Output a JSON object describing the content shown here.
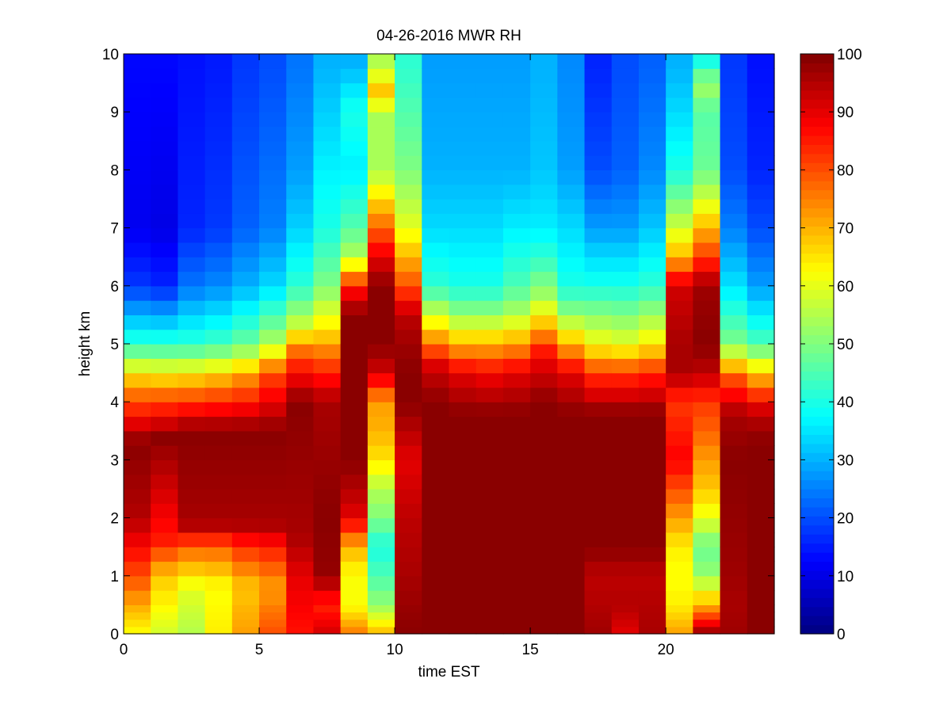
{
  "chart_data": {
    "type": "heatmap",
    "title": "04-26-2016 MWR RH",
    "xlabel": "time EST",
    "ylabel": "height km",
    "xlim": [
      0,
      24
    ],
    "ylim": [
      0,
      10
    ],
    "xticks": [
      0,
      5,
      10,
      15,
      20
    ],
    "yticks": [
      0,
      1,
      2,
      3,
      4,
      5,
      6,
      7,
      8,
      9,
      10
    ],
    "colormap": "jet",
    "clim": [
      0,
      100
    ],
    "colorbar_ticks": [
      0,
      10,
      20,
      30,
      40,
      50,
      60,
      70,
      80,
      90,
      100
    ],
    "x": [
      0.0,
      1.0,
      2.0,
      3.0,
      4.0,
      5.0,
      6.0,
      7.0,
      8.0,
      9.0,
      10.0,
      11.0,
      12.0,
      13.0,
      14.0,
      15.0,
      16.0,
      17.0,
      18.0,
      19.0,
      20.0,
      21.0,
      22.0,
      23.0
    ],
    "y_rows": [
      0.0,
      0.125,
      0.25,
      0.375,
      0.5,
      0.75,
      1.0,
      1.25,
      1.5,
      1.75,
      2.0,
      2.25,
      2.5,
      2.75,
      3.0,
      3.25,
      3.5,
      3.75,
      4.0,
      4.25,
      4.5,
      4.75,
      5.0,
      5.25,
      5.5,
      5.75,
      6.0,
      6.25,
      6.5,
      6.75,
      7.0,
      7.25,
      7.5,
      7.75,
      8.0,
      8.25,
      8.5,
      8.75,
      9.0,
      9.25,
      9.5,
      9.75
    ],
    "profiles": [
      {
        "time": 0.0,
        "h": [
          0,
          1,
          2,
          3.3,
          4.3,
          5.0,
          6.0,
          7.0,
          9.8
        ],
        "rh": [
          62,
          80,
          95,
          99,
          72,
          42,
          18,
          11,
          13
        ]
      },
      {
        "time": 1.0,
        "h": [
          0,
          1,
          1.6,
          3.4,
          4.2,
          5.0,
          6.0,
          7.0,
          9.8
        ],
        "rh": [
          58,
          68,
          85,
          99,
          75,
          42,
          16,
          10,
          13
        ]
      },
      {
        "time": 2.0,
        "h": [
          0,
          0.8,
          1.5,
          1.9,
          3.5,
          4.3,
          5.0,
          6.0,
          7.0,
          9.8
        ],
        "rh": [
          55,
          60,
          78,
          96,
          99,
          72,
          42,
          24,
          16,
          14
        ]
      },
      {
        "time": 3.0,
        "h": [
          0,
          0.8,
          1.5,
          1.9,
          3.5,
          4.3,
          5.0,
          6.0,
          7.0,
          9.8
        ],
        "rh": [
          64,
          62,
          78,
          96,
          99,
          74,
          44,
          26,
          18,
          15
        ]
      },
      {
        "time": 4.0,
        "h": [
          0,
          0.8,
          1.5,
          1.9,
          3.5,
          4.4,
          5.0,
          6.0,
          7.0,
          9.8
        ],
        "rh": [
          72,
          68,
          83,
          96,
          99,
          74,
          48,
          30,
          22,
          18
        ]
      },
      {
        "time": 5.0,
        "h": [
          0,
          0.8,
          1.5,
          1.9,
          3.5,
          4.5,
          5.0,
          6.0,
          7.0,
          9.8
        ],
        "rh": [
          80,
          72,
          85,
          96,
          99,
          80,
          55,
          34,
          25,
          20
        ]
      },
      {
        "time": 6.0,
        "h": [
          0,
          1.0,
          1.7,
          4.0,
          4.8,
          5.4,
          6.0,
          7.0,
          8.0,
          9.8
        ],
        "rh": [
          86,
          90,
          96,
          99,
          80,
          55,
          42,
          33,
          28,
          24
        ]
      },
      {
        "time": 7.0,
        "h": [
          0,
          0.5,
          1.0,
          2.0,
          4.0,
          4.7,
          5.2,
          6.0,
          7.0,
          9.8
        ],
        "rh": [
          92,
          84,
          98,
          99,
          96,
          80,
          66,
          50,
          40,
          30
        ]
      },
      {
        "time": 8.0,
        "h": [
          0,
          0.5,
          1.0,
          1.5,
          2.0,
          2.5,
          3.0,
          5.5,
          6.0,
          6.5,
          7.0,
          8.0,
          9.0,
          9.8
        ],
        "rh": [
          76,
          62,
          62,
          70,
          90,
          95,
          99,
          99,
          85,
          55,
          46,
          36,
          40,
          30
        ]
      },
      {
        "time": 9.0,
        "h": [
          0,
          0.5,
          1.0,
          1.5,
          2.0,
          2.5,
          3.0,
          3.5,
          4.0,
          4.5,
          5.0,
          6.0,
          6.5,
          7.0,
          7.5,
          8.0,
          9.0,
          9.3,
          9.8
        ],
        "rh": [
          70,
          52,
          45,
          40,
          50,
          55,
          65,
          70,
          72,
          92,
          99,
          99,
          90,
          78,
          66,
          54,
          54,
          70,
          55
        ]
      },
      {
        "time": 10.0,
        "h": [
          0,
          1.0,
          2.0,
          3.0,
          4.0,
          4.5,
          5.0,
          5.5,
          6.0,
          7.0,
          8.0,
          9.8
        ],
        "rh": [
          99,
          96,
          94,
          90,
          99,
          99,
          97,
          94,
          80,
          60,
          50,
          42
        ]
      },
      {
        "time": 11.0,
        "h": [
          0,
          4.0,
          4.6,
          5.0,
          5.5,
          6.0,
          7.0,
          8.0,
          9.8
        ],
        "rh": [
          99,
          99,
          92,
          76,
          58,
          42,
          34,
          30,
          28
        ]
      },
      {
        "time": 12.0,
        "h": [
          0,
          3.8,
          4.5,
          5.0,
          5.5,
          6.0,
          7.0,
          8.0,
          9.8
        ],
        "rh": [
          99,
          99,
          90,
          70,
          52,
          40,
          34,
          30,
          28
        ]
      },
      {
        "time": 13.0,
        "h": [
          0,
          3.8,
          4.5,
          5.0,
          5.5,
          6.0,
          7.0,
          8.0,
          9.8
        ],
        "rh": [
          99,
          99,
          88,
          70,
          52,
          40,
          34,
          30,
          28
        ]
      },
      {
        "time": 14.0,
        "h": [
          0,
          3.8,
          4.5,
          5.0,
          5.5,
          6.0,
          7.0,
          8.0,
          9.8
        ],
        "rh": [
          99,
          99,
          90,
          72,
          55,
          45,
          36,
          30,
          28
        ]
      },
      {
        "time": 15.0,
        "h": [
          0,
          4.0,
          4.8,
          5.3,
          5.8,
          6.5,
          7.0,
          8.0,
          9.8
        ],
        "rh": [
          99,
          99,
          88,
          70,
          54,
          42,
          36,
          32,
          30
        ]
      },
      {
        "time": 16.0,
        "h": [
          0,
          3.8,
          4.5,
          5.0,
          5.5,
          6.0,
          7.0,
          8.0,
          9.8
        ],
        "rh": [
          99,
          99,
          90,
          70,
          52,
          40,
          34,
          28,
          26
        ]
      },
      {
        "time": 17.0,
        "h": [
          0,
          0.5,
          1.0,
          1.5,
          3.8,
          4.5,
          5.0,
          6.0,
          7.0,
          8.0,
          9.8
        ],
        "rh": [
          97,
          95,
          94,
          99,
          99,
          82,
          62,
          40,
          28,
          20,
          16
        ]
      },
      {
        "time": 18.0,
        "h": [
          0,
          0.5,
          1.0,
          1.5,
          3.8,
          4.5,
          5.0,
          6.0,
          7.0,
          8.0,
          9.8
        ],
        "rh": [
          90,
          95,
          94,
          99,
          99,
          82,
          60,
          40,
          28,
          22,
          20
        ]
      },
      {
        "time": 19.0,
        "h": [
          0,
          0.5,
          1.0,
          1.5,
          3.8,
          4.5,
          5.0,
          6.0,
          7.0,
          8.0,
          9.8
        ],
        "rh": [
          96,
          95,
          94,
          99,
          99,
          84,
          64,
          42,
          32,
          26,
          22
        ]
      },
      {
        "time": 20.0,
        "h": [
          0,
          0.5,
          1.0,
          1.5,
          2.0,
          2.5,
          3.0,
          3.5,
          4.0,
          4.5,
          5.0,
          6.0,
          6.5,
          7.0,
          8.0,
          9.0,
          9.8
        ],
        "rh": [
          72,
          64,
          62,
          64,
          72,
          80,
          88,
          85,
          82,
          96,
          96,
          92,
          70,
          58,
          40,
          34,
          30
        ]
      },
      {
        "time": 21.0,
        "h": [
          0,
          0.5,
          0.8,
          1.0,
          1.5,
          2.0,
          2.5,
          3.0,
          3.5,
          4.0,
          4.5,
          5.0,
          6.0,
          6.5,
          7.0,
          7.5,
          8.0,
          9.0,
          9.5,
          9.8
        ],
        "rh": [
          99,
          70,
          60,
          52,
          48,
          60,
          68,
          72,
          78,
          82,
          94,
          99,
          97,
          82,
          70,
          58,
          48,
          46,
          54,
          40
        ]
      },
      {
        "time": 22.0,
        "h": [
          0,
          0.5,
          1.0,
          2.0,
          3.0,
          3.8,
          4.4,
          5.0,
          6.0,
          7.0,
          8.0,
          9.8
        ],
        "rh": [
          97,
          96,
          97,
          98,
          99,
          96,
          80,
          50,
          35,
          25,
          20,
          18
        ]
      },
      {
        "time": 23.0,
        "h": [
          0,
          3.3,
          3.8,
          4.3,
          5.0,
          6.0,
          7.0,
          8.0,
          9.8
        ],
        "rh": [
          99,
          99,
          94,
          76,
          45,
          28,
          20,
          16,
          14
        ]
      }
    ]
  }
}
